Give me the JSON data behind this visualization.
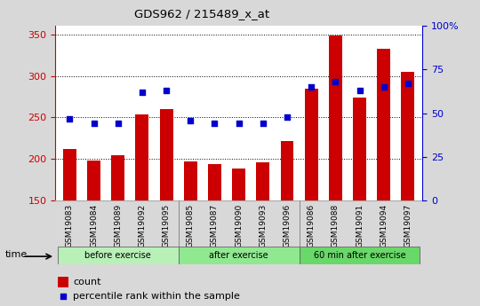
{
  "title": "GDS962 / 215489_x_at",
  "samples": [
    "GSM19083",
    "GSM19084",
    "GSM19089",
    "GSM19092",
    "GSM19095",
    "GSM19085",
    "GSM19087",
    "GSM19090",
    "GSM19093",
    "GSM19096",
    "GSM19086",
    "GSM19088",
    "GSM19091",
    "GSM19094",
    "GSM19097"
  ],
  "counts": [
    212,
    198,
    204,
    254,
    260,
    197,
    194,
    188,
    196,
    222,
    284,
    349,
    274,
    333,
    305
  ],
  "percentile_ranks": [
    47,
    44,
    44,
    62,
    63,
    46,
    44,
    44,
    44,
    48,
    65,
    68,
    63,
    65,
    67
  ],
  "groups": [
    {
      "label": "before exercise",
      "start": 0,
      "end": 5,
      "color": "#b8f0b8"
    },
    {
      "label": "after exercise",
      "start": 5,
      "end": 10,
      "color": "#90e890"
    },
    {
      "label": "60 min after exercise",
      "start": 10,
      "end": 15,
      "color": "#68d868"
    }
  ],
  "ylim_left": [
    150,
    360
  ],
  "ylim_right": [
    0,
    100
  ],
  "yticks_left": [
    150,
    200,
    250,
    300,
    350
  ],
  "yticks_right": [
    0,
    25,
    50,
    75,
    100
  ],
  "bar_color": "#cc0000",
  "dot_color": "#0000cc",
  "plot_bg_color": "#ffffff",
  "fig_bg_color": "#d8d8d8",
  "xtick_bg_color": "#c8c8c8",
  "tick_label_color_left": "#cc0000",
  "tick_label_color_right": "#0000cc",
  "legend_count_label": "count",
  "legend_pct_label": "percentile rank within the sample",
  "bar_width": 0.55
}
